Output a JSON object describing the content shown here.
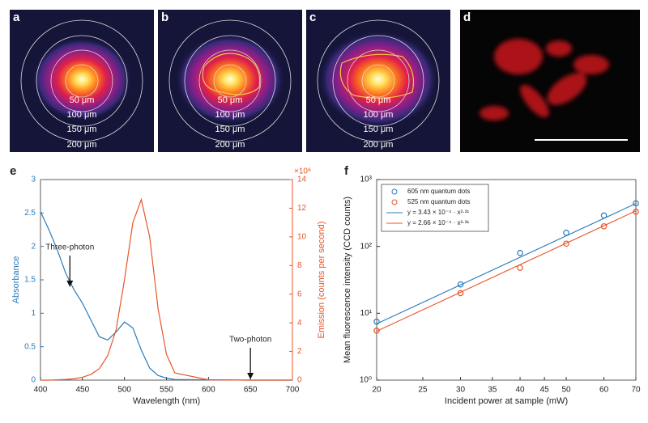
{
  "image_panels": [
    {
      "label": "a",
      "ring_labels": [
        "50 μm",
        "100 μm",
        "150 μm",
        "200 μm"
      ]
    },
    {
      "label": "b",
      "ring_labels": [
        "50 μm",
        "100 μm",
        "150 μm",
        "200 μm"
      ]
    },
    {
      "label": "c",
      "ring_labels": [
        "50 μm",
        "100 μm",
        "150 μm",
        "200 μm"
      ]
    },
    {
      "label": "d"
    }
  ],
  "chart_data": [
    {
      "type": "line",
      "panel_label": "e",
      "xlabel": "Wavelength (nm)",
      "ylabel": "Absorbance",
      "y2label": "Emission (counts per second)",
      "y2_multiplier": "×10⁶",
      "y_axis_color": "#2b7bba",
      "y2_axis_color": "#e8562a",
      "x": [
        400,
        410,
        420,
        430,
        440,
        450,
        460,
        470,
        480,
        490,
        500,
        510,
        520,
        530,
        540,
        550,
        560,
        600,
        650,
        700
      ],
      "series": [
        {
          "name": "Absorbance",
          "color": "#2b7bba",
          "axis": "y",
          "values": [
            2.52,
            2.25,
            1.95,
            1.6,
            1.35,
            1.15,
            0.9,
            0.65,
            0.6,
            0.72,
            0.87,
            0.78,
            0.45,
            0.18,
            0.07,
            0.03,
            0.01,
            0.005,
            0,
            0
          ]
        },
        {
          "name": "Emission",
          "color": "#e8562a",
          "axis": "y2",
          "values": [
            0,
            0,
            0.02,
            0.05,
            0.1,
            0.2,
            0.4,
            0.8,
            1.7,
            3.5,
            7.0,
            11.0,
            12.6,
            10.0,
            5.0,
            1.8,
            0.5,
            0.02,
            0,
            0
          ]
        }
      ],
      "xlim": [
        400,
        700
      ],
      "xticks": [
        400,
        450,
        500,
        550,
        600,
        650,
        700
      ],
      "ylim": [
        0,
        3
      ],
      "yticks": [
        0,
        0.5,
        1,
        1.5,
        2,
        2.5,
        3
      ],
      "y2lim": [
        0,
        14
      ],
      "y2ticks": [
        0,
        2,
        4,
        6,
        8,
        10,
        12,
        14
      ],
      "annotations": [
        {
          "text": "Three-photon",
          "x": 435,
          "y": 1.38
        },
        {
          "text": "Two-photon",
          "x": 650,
          "y": 0
        }
      ]
    },
    {
      "type": "scatter",
      "panel_label": "f",
      "xlabel": "Incident power at sample (mW)",
      "ylabel": "Mean fluorescence intensity (CCD counts)",
      "xscale": "log",
      "yscale": "log",
      "legend": "upper-left",
      "xlim": [
        20,
        70
      ],
      "xticks": [
        20,
        25,
        30,
        35,
        40,
        45,
        50,
        60,
        70
      ],
      "ylim": [
        1,
        1000
      ],
      "yticks": [
        {
          "value": 1,
          "label": "10⁰"
        },
        {
          "value": 10,
          "label": "10¹"
        },
        {
          "value": 100,
          "label": "10²"
        },
        {
          "value": 1000,
          "label": "10³"
        }
      ],
      "series": [
        {
          "name": "605 nm quantum dots",
          "color": "#2b7bba",
          "marker": "circle",
          "x": [
            20,
            30,
            40,
            50,
            60,
            70
          ],
          "values": [
            7.5,
            27,
            80,
            160,
            290,
            440
          ]
        },
        {
          "name": "525 nm quantum dots",
          "color": "#e8562a",
          "marker": "circle",
          "x": [
            20,
            30,
            40,
            50,
            60,
            70
          ],
          "values": [
            5.5,
            20,
            48,
            110,
            200,
            330
          ]
        },
        {
          "name": "y = 3.43 × 10⁻⁴ · x³·³¹",
          "color": "#2b7bba",
          "marker": "line",
          "x": [
            20,
            70
          ],
          "values": [
            6.95,
            438
          ]
        },
        {
          "name": "y = 2.66 × 10⁻⁴ · x³·³¹",
          "color": "#e8562a",
          "marker": "line",
          "x": [
            20,
            70
          ],
          "values": [
            5.39,
            340
          ]
        }
      ]
    }
  ]
}
